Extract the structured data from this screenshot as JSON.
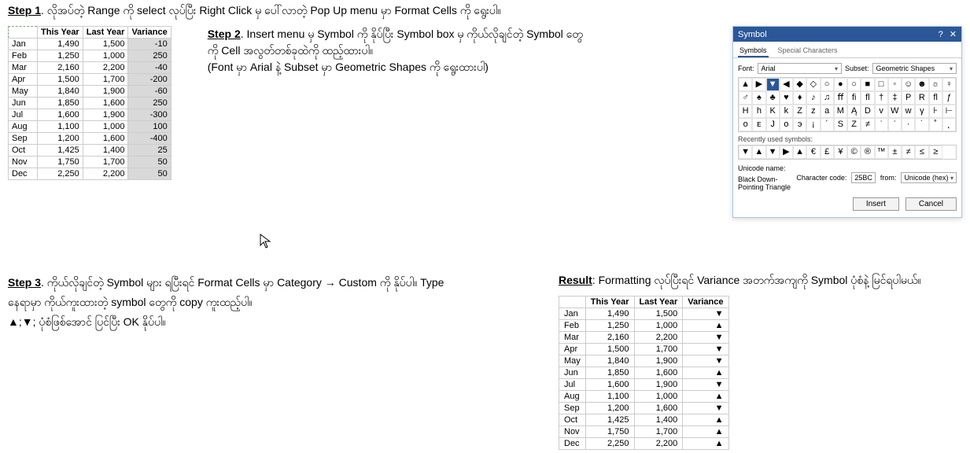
{
  "step1": {
    "label": "Step 1",
    "text": ". လိုအပ်တဲ့ Range ကို select လုပ်ပြီး Right Click မှ ပေါ်လာတဲ့ Pop Up menu မှာ Format Cells ကို ရွေးပါ။"
  },
  "table1": {
    "headers": [
      "",
      "This Year",
      "Last Year",
      "Variance"
    ],
    "rows": [
      [
        "Jan",
        "1,490",
        "1,500",
        "-10"
      ],
      [
        "Feb",
        "1,250",
        "1,000",
        "250"
      ],
      [
        "Mar",
        "2,160",
        "2,200",
        "-40"
      ],
      [
        "Apr",
        "1,500",
        "1,700",
        "-200"
      ],
      [
        "May",
        "1,840",
        "1,900",
        "-60"
      ],
      [
        "Jun",
        "1,850",
        "1,600",
        "250"
      ],
      [
        "Jul",
        "1,600",
        "1,900",
        "-300"
      ],
      [
        "Aug",
        "1,100",
        "1,000",
        "100"
      ],
      [
        "Sep",
        "1,200",
        "1,600",
        "-400"
      ],
      [
        "Oct",
        "1,425",
        "1,400",
        "25"
      ],
      [
        "Nov",
        "1,750",
        "1,700",
        "50"
      ],
      [
        "Dec",
        "2,250",
        "2,200",
        "50"
      ]
    ]
  },
  "step2": {
    "label": "Step 2",
    "line1": ". Insert menu မှ Symbol ကို နိုပ်ပြီး Symbol box မှ ကိုယ်လိုချင်တဲ့ Symbol တွေကို Cell အလွတ်တစ်ခုထဲကို ထည့်ထားပါ။",
    "line2": "(Font  မှာ Arial နဲ့ Subset မှာ Geometric Shapes ကို ရွေးထားပါ)"
  },
  "dialog": {
    "title": "Symbol",
    "tab1": "Symbols",
    "tab2": "Special Characters",
    "font_label": "Font:",
    "font_value": "Arial",
    "subset_label": "Subset:",
    "subset_value": "Geometric Shapes",
    "grid": [
      "▲",
      "▶",
      "▼",
      "◀",
      "◆",
      "◇",
      "○",
      "●",
      "○",
      "■",
      "□",
      "◦",
      "☺",
      "☻",
      "☼",
      "♀",
      "♂",
      "♠",
      "♣",
      "♥",
      "♦",
      "♪",
      "♫",
      "ﬀ",
      "ﬁ",
      "ﬂ",
      "†",
      "‡",
      "P",
      "R",
      "ﬂ",
      "ƒ",
      "H",
      "h",
      "K",
      "k",
      "Z",
      "z",
      "a",
      "M",
      "Ą",
      "D",
      "v",
      "W",
      "w",
      "γ",
      "⊦",
      "⊢",
      "ᴏ",
      "ᴇ",
      "J",
      "o",
      "э",
      "¡",
      "´",
      "S",
      "Z",
      "≠",
      "ʾ",
      "ʿ",
      "·",
      "˙",
      "˚",
      "˛"
    ],
    "selected_index": 2,
    "recent_label": "Recently used symbols:",
    "recent": [
      "▼",
      "▲",
      "▼",
      "▶",
      "▲",
      "€",
      "£",
      "¥",
      "©",
      "®",
      "™",
      "±",
      "≠",
      "≤",
      "≥"
    ],
    "unicode_label": "Unicode name:",
    "unicode_name": "Black Down-Pointing Triangle",
    "charcode_label": "Character code:",
    "charcode": "25BC",
    "from_label": "from:",
    "from_value": "Unicode (hex)",
    "btn_insert": "Insert",
    "btn_cancel": "Cancel",
    "help": "?",
    "close": "✕"
  },
  "step3": {
    "label": "Step 3",
    "line1": ". ကိုယ်လိုချင်တဲ့ Symbol များ ရပြီးရင် Format Cells မှာ Category → Custom ကို နိုပ်ပါ။ Type နေရာမှာ ကိုယ်ကူးထားတဲ့ symbol တွေကို copy ကူးထည့်ပါ။",
    "line2": "▲;▼; ပုံစံဖြစ်အောင် ပြင်ပြီး OK နိုပ်ပါ။"
  },
  "result": {
    "label": "Result",
    "text": ": Formatting လုပ်ပြီးရင် Variance အတက်အကျကို Symbol ပုံစံနဲ့ မြင်ရပါမယ်။"
  },
  "table2": {
    "headers": [
      "",
      "This Year",
      "Last Year",
      "Variance"
    ],
    "rows": [
      [
        "Jan",
        "1,490",
        "1,500",
        "▼"
      ],
      [
        "Feb",
        "1,250",
        "1,000",
        "▲"
      ],
      [
        "Mar",
        "2,160",
        "2,200",
        "▼"
      ],
      [
        "Apr",
        "1,500",
        "1,700",
        "▼"
      ],
      [
        "May",
        "1,840",
        "1,900",
        "▼"
      ],
      [
        "Jun",
        "1,850",
        "1,600",
        "▲"
      ],
      [
        "Jul",
        "1,600",
        "1,900",
        "▼"
      ],
      [
        "Aug",
        "1,100",
        "1,000",
        "▲"
      ],
      [
        "Sep",
        "1,200",
        "1,600",
        "▼"
      ],
      [
        "Oct",
        "1,425",
        "1,400",
        "▲"
      ],
      [
        "Nov",
        "1,750",
        "1,700",
        "▲"
      ],
      [
        "Dec",
        "2,250",
        "2,200",
        "▲"
      ]
    ]
  }
}
